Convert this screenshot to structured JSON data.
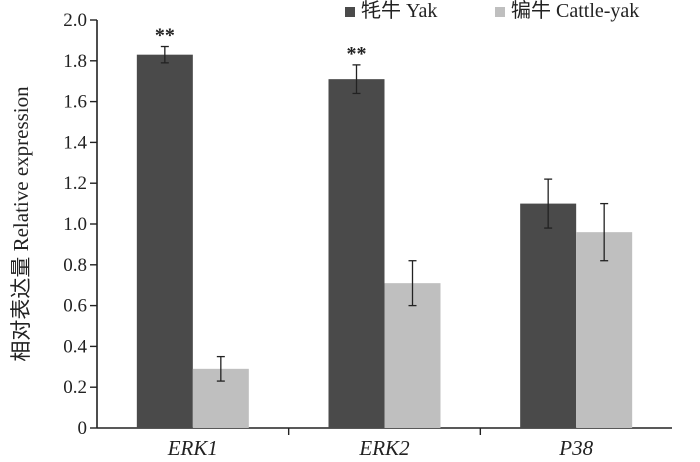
{
  "chart_data": {
    "type": "bar",
    "categories": [
      "ERK1",
      "ERK2",
      "P38"
    ],
    "series": [
      {
        "name": "牦牛 Yak",
        "color": "#4a4a4a",
        "values": [
          1.83,
          1.71,
          1.1
        ],
        "errors": [
          0.04,
          0.07,
          0.12
        ],
        "significance": [
          "**",
          "**",
          ""
        ]
      },
      {
        "name": "犏牛 Cattle-yak",
        "color": "#bfbfbf",
        "values": [
          0.29,
          0.71,
          0.96
        ],
        "errors": [
          0.06,
          0.11,
          0.14
        ],
        "significance": [
          "",
          "",
          ""
        ]
      }
    ],
    "ylabel": "相对表达量 Relative expression",
    "xlabel": "",
    "ylim": [
      0,
      2.0
    ],
    "yticks": [
      "0",
      "0.2",
      "0.4",
      "0.6",
      "0.8",
      "1.0",
      "1.2",
      "1.4",
      "1.6",
      "1.8",
      "2.0"
    ],
    "legend_position": "top-right",
    "grid": false
  }
}
